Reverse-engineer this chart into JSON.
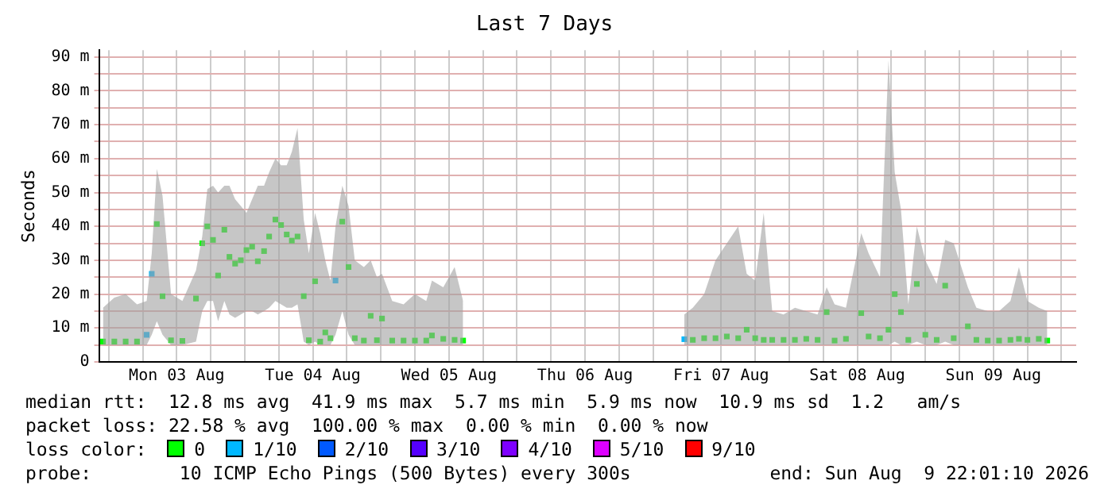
{
  "chart_data": {
    "type": "scatter",
    "title": "Last 7 Days",
    "ylabel": "Seconds",
    "x": [
      "2026-08-02T23:00",
      "2026-08-03T01:00",
      "2026-08-03T03:00",
      "2026-08-03T05:00",
      "2026-08-03T06:42",
      "2026-08-03T07:36",
      "2026-08-03T08:30",
      "2026-08-03T09:30",
      "2026-08-03T11:00",
      "2026-08-03T13:00",
      "2026-08-03T15:24",
      "2026-08-03T16:30",
      "2026-08-03T17:24",
      "2026-08-03T18:24",
      "2026-08-03T19:18",
      "2026-08-03T20:24",
      "2026-08-03T21:18",
      "2026-08-03T22:18",
      "2026-08-03T23:18",
      "2026-08-04T00:18",
      "2026-08-04T01:18",
      "2026-08-04T02:18",
      "2026-08-04T03:24",
      "2026-08-04T04:18",
      "2026-08-04T05:24",
      "2026-08-04T06:24",
      "2026-08-04T07:24",
      "2026-08-04T08:18",
      "2026-08-04T09:18",
      "2026-08-04T10:24",
      "2026-08-04T11:18",
      "2026-08-04T12:24",
      "2026-08-04T13:18",
      "2026-08-04T14:12",
      "2026-08-04T15:06",
      "2026-08-04T16:00",
      "2026-08-04T17:12",
      "2026-08-04T18:18",
      "2026-08-04T19:24",
      "2026-08-04T21:00",
      "2026-08-04T22:12",
      "2026-08-04T23:18",
      "2026-08-05T00:12",
      "2026-08-05T02:00",
      "2026-08-05T04:00",
      "2026-08-05T06:00",
      "2026-08-05T08:00",
      "2026-08-05T09:00",
      "2026-08-05T11:00",
      "2026-08-05T13:00",
      "2026-08-05T14:30",
      "2026-08-06T08:00",
      "2026-08-07T05:30",
      "2026-08-07T07:00",
      "2026-08-07T09:00",
      "2026-08-07T11:00",
      "2026-08-07T13:00",
      "2026-08-07T15:00",
      "2026-08-07T16:30",
      "2026-08-07T18:00",
      "2026-08-07T19:30",
      "2026-08-07T21:00",
      "2026-08-07T23:00",
      "2026-08-08T01:00",
      "2026-08-08T03:00",
      "2026-08-08T05:00",
      "2026-08-08T06:36",
      "2026-08-08T08:00",
      "2026-08-08T10:00",
      "2026-08-08T12:42",
      "2026-08-08T14:00",
      "2026-08-08T16:00",
      "2026-08-08T17:30",
      "2026-08-08T18:36",
      "2026-08-08T19:42",
      "2026-08-08T21:00",
      "2026-08-08T22:30",
      "2026-08-09T00:00",
      "2026-08-09T02:00",
      "2026-08-09T03:30",
      "2026-08-09T05:00",
      "2026-08-09T07:30",
      "2026-08-09T09:00",
      "2026-08-09T11:00",
      "2026-08-09T13:00",
      "2026-08-09T15:00",
      "2026-08-09T16:30",
      "2026-08-09T18:00",
      "2026-08-09T20:00",
      "2026-08-09T21:30"
    ],
    "series": [
      {
        "name": "0",
        "color": "#00ff00",
        "values": [
          6,
          6,
          6,
          6,
          null,
          null,
          40.7,
          19.4,
          6.4,
          6.2,
          18.7,
          35,
          40,
          36,
          25.5,
          39,
          31,
          29,
          30,
          33,
          34,
          29.7,
          32.7,
          37,
          42,
          40.4,
          37.6,
          35.8,
          37,
          19.4,
          6.4,
          23.8,
          6,
          8.7,
          7,
          null,
          41.4,
          28,
          7,
          6.3,
          13.6,
          6.4,
          12.8,
          6.3,
          6.3,
          6.3,
          6.3,
          7.8,
          6.8,
          6.5,
          6.3,
          null,
          null,
          6.5,
          7,
          7,
          7.5,
          7,
          9.5,
          7,
          6.5,
          6.5,
          6.5,
          6.5,
          6.8,
          6.5,
          14.7,
          6.3,
          6.8,
          14.4,
          7.5,
          7,
          9.5,
          20,
          14.7,
          6.5,
          23,
          8,
          6.5,
          22.5,
          7,
          10.5,
          6.5,
          6.3,
          6.3,
          6.5,
          6.8,
          6.5,
          6.8,
          6.3
        ],
        "lower": [
          5,
          5,
          5,
          5,
          5,
          8,
          12,
          8,
          5,
          5,
          6,
          15,
          18,
          18,
          12,
          18,
          14,
          13,
          14,
          15,
          15,
          14,
          15,
          16,
          18,
          17,
          16,
          16,
          17,
          6,
          5,
          6,
          5,
          5,
          5,
          8,
          15,
          8,
          5,
          5,
          5,
          5,
          5,
          5,
          5,
          5,
          5,
          5,
          5,
          5,
          5,
          null,
          5,
          5,
          5,
          5,
          5,
          5,
          5,
          5,
          5,
          5,
          5,
          5,
          5,
          5,
          5,
          5,
          5,
          5,
          5,
          5,
          5,
          6,
          5,
          5,
          6,
          5,
          5,
          6,
          5,
          5,
          5,
          5,
          5,
          5,
          5,
          5,
          5,
          5
        ],
        "upper": [
          16,
          19,
          20,
          17,
          18,
          32,
          57,
          49,
          20,
          18,
          27,
          37,
          51,
          52,
          50,
          52,
          52,
          48,
          46,
          44,
          48,
          52,
          52,
          56,
          60,
          58,
          58,
          62,
          69,
          42,
          32,
          44,
          38,
          30,
          24,
          40,
          52,
          46,
          30,
          28,
          30,
          25,
          26,
          18,
          17,
          20,
          18,
          24,
          22,
          28,
          18,
          null,
          14,
          16,
          20,
          30,
          35,
          40,
          26,
          24,
          44,
          15,
          14,
          16,
          15,
          14,
          22,
          17,
          16,
          38,
          32,
          25,
          89,
          56,
          45,
          17,
          40,
          30,
          23,
          36,
          35,
          22,
          16,
          15,
          15,
          18,
          28,
          18,
          16,
          15
        ]
      },
      {
        "type": "scatter",
        "name": "1/10",
        "color": "#00b8ff",
        "values": [
          null,
          null,
          null,
          null,
          8,
          26,
          null,
          null,
          null,
          null,
          null,
          null,
          null,
          null,
          null,
          null,
          null,
          null,
          null,
          null,
          null,
          null,
          null,
          null,
          null,
          null,
          null,
          null,
          null,
          null,
          null,
          null,
          null,
          null,
          null,
          24,
          null,
          null,
          null,
          null,
          null,
          null,
          null,
          null,
          null,
          null,
          null,
          null,
          null,
          null,
          null,
          null,
          6.7,
          null,
          null,
          null,
          null,
          null,
          null,
          null,
          null,
          null,
          null,
          null,
          null,
          null,
          null,
          null,
          null,
          null,
          null,
          null,
          null,
          null,
          null,
          null,
          null,
          null,
          null,
          null,
          null,
          null,
          null,
          null,
          null,
          null,
          null,
          null,
          null,
          null
        ]
      },
      {
        "type": "scatter",
        "name": "2/10",
        "color": "#0059ff",
        "values": [
          null,
          null,
          null,
          null,
          null,
          null,
          null,
          null,
          null,
          null,
          null,
          null,
          null,
          null,
          null,
          null,
          null,
          null,
          null,
          null,
          null,
          null,
          null,
          null,
          null,
          null,
          null,
          null,
          null,
          null,
          null,
          null,
          null,
          null,
          null,
          null,
          null,
          null,
          null,
          null,
          null,
          null,
          null,
          null,
          null,
          null,
          null,
          null,
          null,
          null,
          null,
          null,
          null,
          null,
          null,
          null,
          null,
          null,
          null,
          null,
          null,
          null,
          null,
          null,
          null,
          null,
          null,
          null,
          null,
          null,
          null,
          null,
          null,
          null,
          null,
          null,
          null,
          null,
          null,
          null,
          null,
          null,
          null,
          null,
          null,
          null,
          null,
          null,
          null,
          null
        ]
      },
      {
        "type": "scatter",
        "name": "3/10",
        "color": "#5500ff",
        "values": [
          null,
          null,
          null,
          null,
          null,
          null,
          null,
          null,
          null,
          null,
          null,
          null,
          null,
          null,
          null,
          null,
          null,
          null,
          null,
          null,
          null,
          null,
          null,
          null,
          null,
          null,
          null,
          null,
          null,
          null,
          null,
          null,
          null,
          null,
          null,
          null,
          null,
          null,
          null,
          null,
          null,
          null,
          null,
          null,
          null,
          null,
          null,
          null,
          null,
          null,
          null,
          null,
          null,
          null,
          null,
          null,
          null,
          null,
          null,
          null,
          null,
          null,
          null,
          null,
          null,
          null,
          null,
          null,
          null,
          null,
          null,
          null,
          null,
          null,
          null,
          null,
          null,
          null,
          null,
          null,
          null,
          null,
          null,
          null,
          null,
          null,
          null,
          null,
          null,
          null
        ]
      },
      {
        "type": "scatter",
        "name": "4/10",
        "color": "#7e00ff",
        "values": [
          null,
          null,
          null,
          null,
          null,
          null,
          null,
          null,
          null,
          null,
          null,
          null,
          null,
          null,
          null,
          null,
          null,
          null,
          null,
          null,
          null,
          null,
          null,
          null,
          null,
          null,
          null,
          null,
          null,
          null,
          null,
          null,
          null,
          null,
          null,
          null,
          null,
          null,
          null,
          null,
          null,
          null,
          null,
          null,
          null,
          null,
          null,
          null,
          null,
          null,
          null,
          null,
          null,
          null,
          null,
          null,
          null,
          null,
          null,
          null,
          null,
          null,
          null,
          null,
          null,
          null,
          null,
          null,
          null,
          null,
          null,
          null,
          null,
          null,
          null,
          null,
          null,
          null,
          null,
          null,
          null,
          null,
          null,
          null,
          null,
          null,
          null,
          null,
          null,
          null
        ]
      },
      {
        "type": "scatter",
        "name": "5/10",
        "color": "#dd00ff",
        "values": [
          null,
          null,
          null,
          null,
          null,
          null,
          null,
          null,
          null,
          null,
          null,
          null,
          null,
          null,
          null,
          null,
          null,
          null,
          null,
          null,
          null,
          null,
          null,
          null,
          null,
          null,
          null,
          null,
          null,
          null,
          null,
          null,
          null,
          null,
          null,
          null,
          null,
          null,
          null,
          null,
          null,
          null,
          null,
          null,
          null,
          null,
          null,
          null,
          null,
          null,
          null,
          null,
          null,
          null,
          null,
          null,
          null,
          null,
          null,
          null,
          null,
          null,
          null,
          null,
          null,
          null,
          null,
          null,
          null,
          null,
          null,
          null,
          null,
          null,
          null,
          null,
          null,
          null,
          null,
          null,
          null,
          null,
          null,
          null,
          null,
          null,
          null,
          null,
          null,
          null
        ]
      },
      {
        "type": "scatter",
        "name": "9/10",
        "color": "#ff0000",
        "values": [
          null,
          null,
          null,
          null,
          null,
          null,
          null,
          null,
          null,
          null,
          null,
          null,
          null,
          null,
          null,
          null,
          null,
          null,
          null,
          null,
          null,
          null,
          null,
          null,
          null,
          null,
          null,
          null,
          null,
          null,
          null,
          null,
          null,
          null,
          null,
          null,
          null,
          null,
          null,
          null,
          null,
          null,
          null,
          null,
          null,
          null,
          null,
          null,
          null,
          null,
          null,
          null,
          null,
          null,
          null,
          null,
          null,
          null,
          null,
          null,
          null,
          null,
          null,
          null,
          null,
          null,
          null,
          null,
          null,
          null,
          null,
          null,
          null,
          null,
          null,
          null,
          null,
          null,
          null,
          null,
          null,
          null,
          null,
          null,
          null,
          null,
          null,
          null,
          null,
          null
        ]
      }
    ],
    "xlim": [
      "2026-08-02T22:18",
      "2026-08-10T02:36"
    ],
    "xticks": [
      {
        "value": "2026-08-03T00:00",
        "label": null
      },
      {
        "value": "2026-08-03T06:00",
        "label": null
      },
      {
        "value": "2026-08-03T12:00",
        "label": "Mon 03 Aug"
      },
      {
        "value": "2026-08-03T18:00",
        "label": null
      },
      {
        "value": "2026-08-04T00:00",
        "label": null
      },
      {
        "value": "2026-08-04T06:00",
        "label": null
      },
      {
        "value": "2026-08-04T12:00",
        "label": "Tue 04 Aug"
      },
      {
        "value": "2026-08-04T18:00",
        "label": null
      },
      {
        "value": "2026-08-05T00:00",
        "label": null
      },
      {
        "value": "2026-08-05T06:00",
        "label": null
      },
      {
        "value": "2026-08-05T12:00",
        "label": "Wed 05 Aug"
      },
      {
        "value": "2026-08-05T18:00",
        "label": null
      },
      {
        "value": "2026-08-06T00:00",
        "label": null
      },
      {
        "value": "2026-08-06T06:00",
        "label": null
      },
      {
        "value": "2026-08-06T12:00",
        "label": "Thu 06 Aug"
      },
      {
        "value": "2026-08-06T18:00",
        "label": null
      },
      {
        "value": "2026-08-07T00:00",
        "label": null
      },
      {
        "value": "2026-08-07T06:00",
        "label": null
      },
      {
        "value": "2026-08-07T12:00",
        "label": "Fri 07 Aug"
      },
      {
        "value": "2026-08-07T18:00",
        "label": null
      },
      {
        "value": "2026-08-08T00:00",
        "label": null
      },
      {
        "value": "2026-08-08T06:00",
        "label": null
      },
      {
        "value": "2026-08-08T12:00",
        "label": "Sat 08 Aug"
      },
      {
        "value": "2026-08-08T18:00",
        "label": null
      },
      {
        "value": "2026-08-09T00:00",
        "label": null
      },
      {
        "value": "2026-08-09T06:00",
        "label": null
      },
      {
        "value": "2026-08-09T12:00",
        "label": "Sun 09 Aug"
      },
      {
        "value": "2026-08-09T18:00",
        "label": null
      },
      {
        "value": "2026-08-10T00:00",
        "label": null
      }
    ],
    "ylim": [
      0,
      92
    ],
    "yticks": [
      0,
      {
        "value": 5,
        "label": null
      },
      {
        "value": 10,
        "label": "10 m"
      },
      {
        "value": 15,
        "label": null
      },
      {
        "value": 20,
        "label": "20 m"
      },
      {
        "value": 25,
        "label": null
      },
      {
        "value": 30,
        "label": "30 m"
      },
      {
        "value": 35,
        "label": null
      },
      {
        "value": 40,
        "label": "40 m"
      },
      {
        "value": 45,
        "label": null
      },
      {
        "value": 50,
        "label": "50 m"
      },
      {
        "value": 55,
        "label": null
      },
      {
        "value": 60,
        "label": "60 m"
      },
      {
        "value": 65,
        "label": null
      },
      {
        "value": 70,
        "label": "70 m"
      },
      {
        "value": 75,
        "label": null
      },
      {
        "value": 80,
        "label": "80 m"
      },
      {
        "value": 85,
        "label": null
      },
      {
        "value": 90,
        "label": "90 m"
      }
    ],
    "grid": true,
    "marker": "square",
    "legend": "bottom",
    "legend_title": "loss color:",
    "annotations": [
      "median rtt:  12.8 ms avg  41.9 ms max  5.7 ms min  5.9 ms now  10.9 ms sd  1.2   am/s",
      "packet loss: 22.58 % avg  100.00 % max  0.00 % min  0.00 % now",
      "probe:        10 ICMP Echo Pings (500 Bytes) every 300s",
      "end: Sun Aug  9 22:01:10 2026"
    ]
  }
}
